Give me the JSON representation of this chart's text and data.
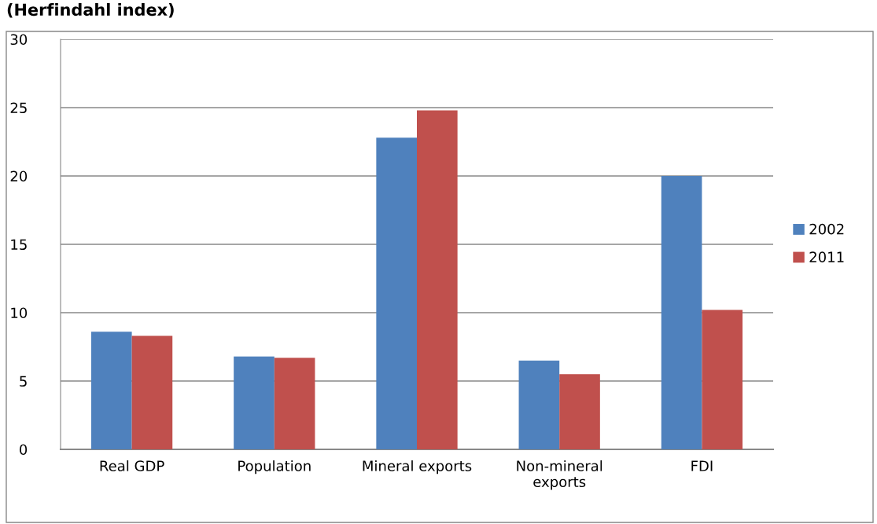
{
  "chart_data": {
    "type": "bar",
    "title": "(Herfindahl index)",
    "categories": [
      "Real GDP",
      "Population",
      "Mineral exports",
      "Non-mineral\nexports",
      "FDI"
    ],
    "series": [
      {
        "name": "2002",
        "color": "#4f81bd",
        "values": [
          8.6,
          6.8,
          22.8,
          6.5,
          20.0
        ]
      },
      {
        "name": "2011",
        "color": "#c0504d",
        "values": [
          8.3,
          6.7,
          24.8,
          5.5,
          10.2
        ]
      }
    ],
    "ylim": [
      0,
      30
    ],
    "yticks": [
      0,
      5,
      10,
      15,
      20,
      25,
      30
    ],
    "grid": "y",
    "legend": "right"
  }
}
